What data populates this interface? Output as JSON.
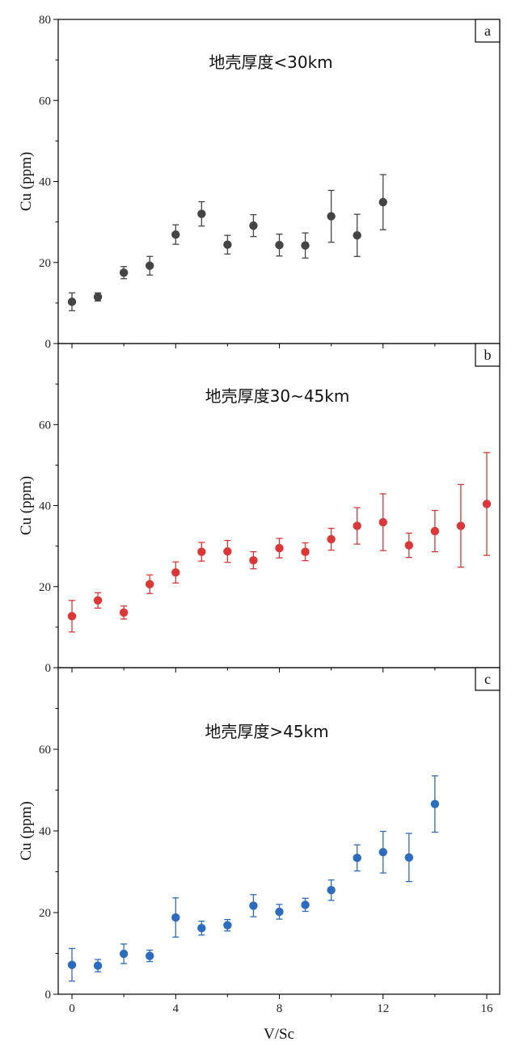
{
  "chart_data": [
    {
      "type": "scatter",
      "panel_label": "a",
      "title": "地壳厚度<30km",
      "ylabel": "Cu (ppm)",
      "xlabel": "",
      "xlim": [
        -0.3,
        16.5
      ],
      "ylim": [
        0,
        80
      ],
      "yticks": [
        0,
        20,
        40,
        60,
        80
      ],
      "xticks": [
        0,
        4,
        8,
        12,
        16
      ],
      "color": "#444444",
      "series": [
        {
          "x": [
            0,
            1,
            2,
            3,
            4,
            5,
            6,
            7,
            8,
            9,
            10,
            11,
            12
          ],
          "y": [
            10.3,
            11.5,
            17.5,
            19.2,
            26.9,
            32.0,
            24.4,
            29.1,
            24.3,
            24.2,
            31.4,
            26.7,
            34.9
          ],
          "err": [
            2.2,
            1.0,
            1.5,
            2.3,
            2.4,
            3.0,
            2.3,
            2.7,
            2.7,
            3.1,
            6.4,
            5.2,
            6.8
          ]
        }
      ]
    },
    {
      "type": "scatter",
      "panel_label": "b",
      "title": "地壳厚度30~45km",
      "ylabel": "Cu (ppm)",
      "xlabel": "",
      "xlim": [
        -0.3,
        16.5
      ],
      "ylim": [
        0,
        80
      ],
      "yticks": [
        0,
        20,
        40,
        60
      ],
      "xticks": [
        0,
        4,
        8,
        12,
        16
      ],
      "color": "#e03535",
      "series": [
        {
          "x": [
            0,
            1,
            2,
            3,
            4,
            5,
            6,
            7,
            8,
            9,
            10,
            11,
            12,
            13,
            14,
            15,
            16
          ],
          "y": [
            12.7,
            16.6,
            13.6,
            20.6,
            23.5,
            28.6,
            28.7,
            26.5,
            29.5,
            28.6,
            31.7,
            35.0,
            35.9,
            30.2,
            33.7,
            35.0,
            40.4
          ],
          "err": [
            3.9,
            1.9,
            1.6,
            2.3,
            2.6,
            2.3,
            2.7,
            2.1,
            2.4,
            2.2,
            2.7,
            4.5,
            7.0,
            3.0,
            5.1,
            10.2,
            12.7
          ]
        }
      ]
    },
    {
      "type": "scatter",
      "panel_label": "c",
      "title": "地壳厚度>45km",
      "ylabel": "Cu (ppm)",
      "xlabel": "V/Sc",
      "xlim": [
        -0.3,
        16.5
      ],
      "ylim": [
        0,
        80
      ],
      "yticks": [
        0,
        20,
        40,
        60
      ],
      "xticks": [
        0,
        4,
        8,
        12,
        16
      ],
      "color": "#2a6cc0",
      "series": [
        {
          "x": [
            0,
            1,
            2,
            3,
            4,
            5,
            6,
            7,
            8,
            9,
            10,
            11,
            12,
            13,
            14
          ],
          "y": [
            7.2,
            7.0,
            9.9,
            9.4,
            18.8,
            16.2,
            16.9,
            21.7,
            20.2,
            21.9,
            25.5,
            33.4,
            34.8,
            33.5,
            46.6
          ],
          "err": [
            4.0,
            1.5,
            2.4,
            1.4,
            4.8,
            1.7,
            1.4,
            2.7,
            1.8,
            1.6,
            2.5,
            3.2,
            5.1,
            5.9,
            6.9
          ]
        }
      ]
    }
  ]
}
